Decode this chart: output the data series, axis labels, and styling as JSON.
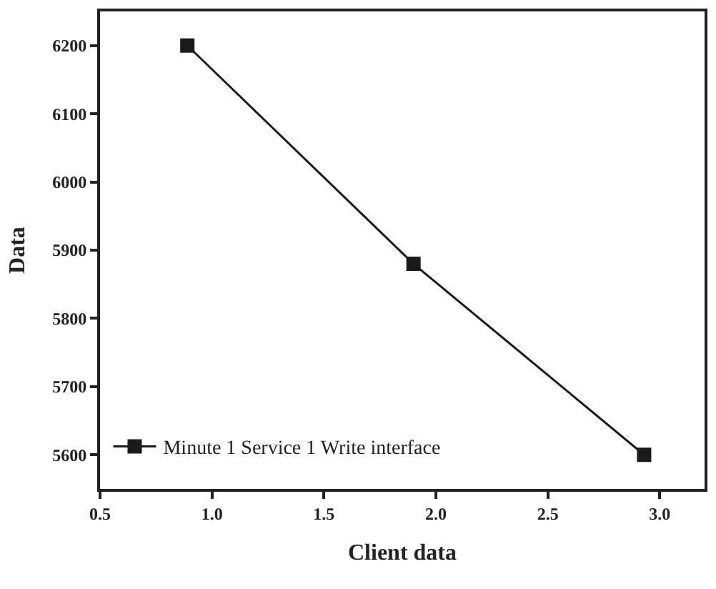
{
  "chart_data": {
    "type": "line",
    "xlabel": "Client data",
    "ylabel": "Data",
    "x": [
      0.89,
      1.9,
      2.93
    ],
    "series": [
      {
        "name": "Minute 1 Service 1 Write interface",
        "color": "#1a1a1a",
        "values": [
          6200,
          5880,
          5600
        ]
      }
    ],
    "xlim": [
      0.5,
      3.2
    ],
    "xticks": [
      {
        "value": 0.5,
        "label": "0.5"
      },
      {
        "value": 1.0,
        "label": "1.0"
      },
      {
        "value": 1.5,
        "label": "1.5"
      },
      {
        "value": 2.0,
        "label": "2.0"
      },
      {
        "value": 2.5,
        "label": "2.5"
      },
      {
        "value": 3.0,
        "label": "3.0"
      }
    ],
    "ylim": [
      5550,
      6250
    ],
    "yticks": [
      5600,
      5700,
      5800,
      5900,
      6000,
      6100,
      6200
    ],
    "legend": "bottom left",
    "marker": "square",
    "line_style": "solid"
  }
}
